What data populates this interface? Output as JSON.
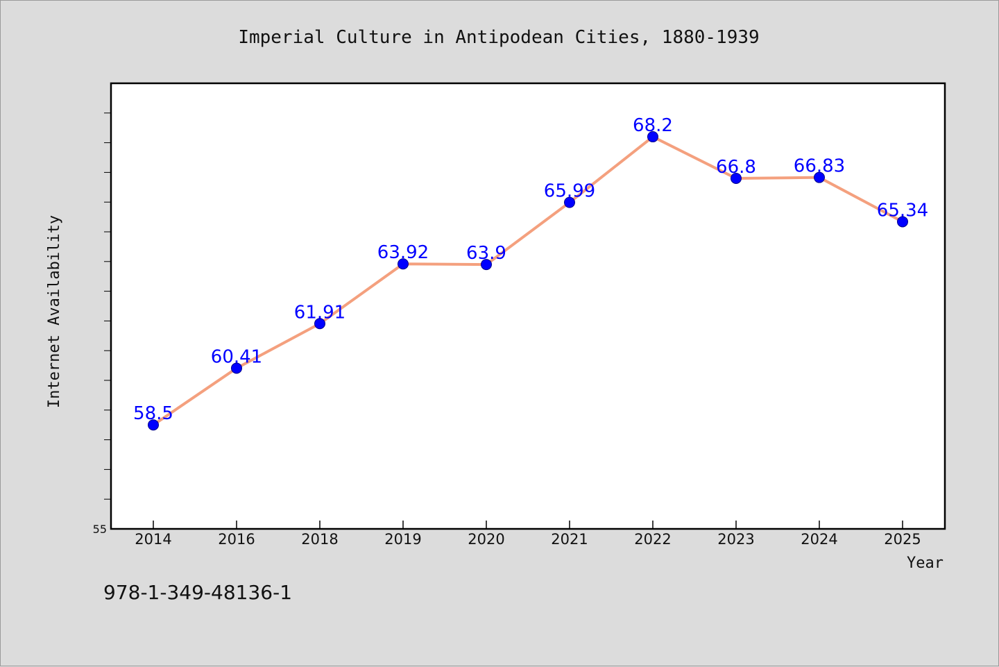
{
  "chart_data": {
    "type": "line",
    "title": "Imperial Culture in Antipodean Cities, 1880-1939",
    "xlabel": "Year",
    "ylabel": "Internet Availability",
    "categories": [
      "2014",
      "2016",
      "2018",
      "2019",
      "2020",
      "2021",
      "2022",
      "2023",
      "2024",
      "2025"
    ],
    "series": [
      {
        "values": [
          58.5,
          60.41,
          61.91,
          63.92,
          63.9,
          65.99,
          68.2,
          66.8,
          66.83,
          65.34
        ],
        "labels": [
          "58.5",
          "60.41",
          "61.91",
          "63.92",
          "63.9",
          "65.99",
          "68.2",
          "66.8",
          "66.83",
          "65.34"
        ]
      }
    ],
    "ylim": [
      55,
      70
    ],
    "yticks": [
      55
    ],
    "ytick_labels": [
      "55"
    ],
    "grid": false,
    "legend": "none",
    "colors": {
      "line": "#f4a07e",
      "marker": "#0000ff",
      "data_label": "#0000ff",
      "plot_background": "#ffffff",
      "figure_background": "#dcdcdc"
    }
  },
  "footer": {
    "isbn": "978-1-349-48136-1"
  }
}
